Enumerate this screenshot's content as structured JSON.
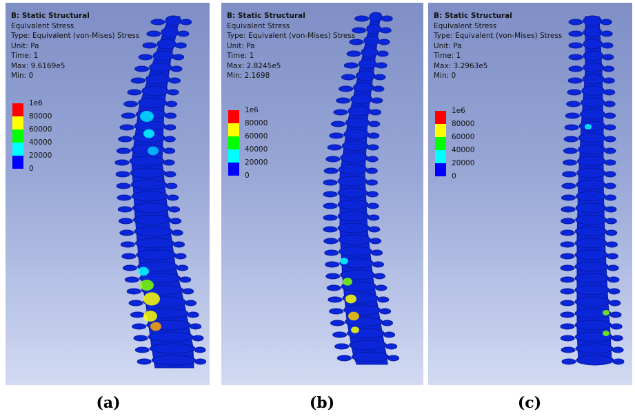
{
  "legend_colors": [
    "#ff0000",
    "#ffff00",
    "#00ff00",
    "#00ffff",
    "#0000ff"
  ],
  "panels": [
    {
      "caption": "(a)",
      "title": "B: Static Structural",
      "line1": "Equivalent Stress",
      "line2": "Type: Equivalent (von-Mises) Stress",
      "line3": "Unit: Pa",
      "line4": "Time: 1",
      "max": "Max: 9.6169e5",
      "min": "Min: 0",
      "legend_labels": [
        "1e6",
        "80000",
        "60000",
        "40000",
        "20000",
        "0"
      ]
    },
    {
      "caption": "(b)",
      "title": "B: Static Structural",
      "line1": "Equivalent Stress",
      "line2": "Type: Equivalent (von-Mises) Stress",
      "line3": "Unit: Pa",
      "line4": "Time: 1",
      "max": "Max: 2.8245e5",
      "min": "Min: 2.1698",
      "legend_labels": [
        "1e6",
        "80000",
        "60000",
        "40000",
        "20000",
        "0"
      ]
    },
    {
      "caption": "(c)",
      "title": "B: Static Structural",
      "line1": "Equivalent Stress",
      "line2": "Type: Equivalent (von-Mises) Stress",
      "line3": "Unit: Pa",
      "line4": "Time: 1",
      "max": "Max: 3.2963e5",
      "min": "Min: 0",
      "legend_labels": [
        "1e6",
        "80000",
        "60000",
        "40000",
        "20000",
        "0"
      ]
    }
  ]
}
